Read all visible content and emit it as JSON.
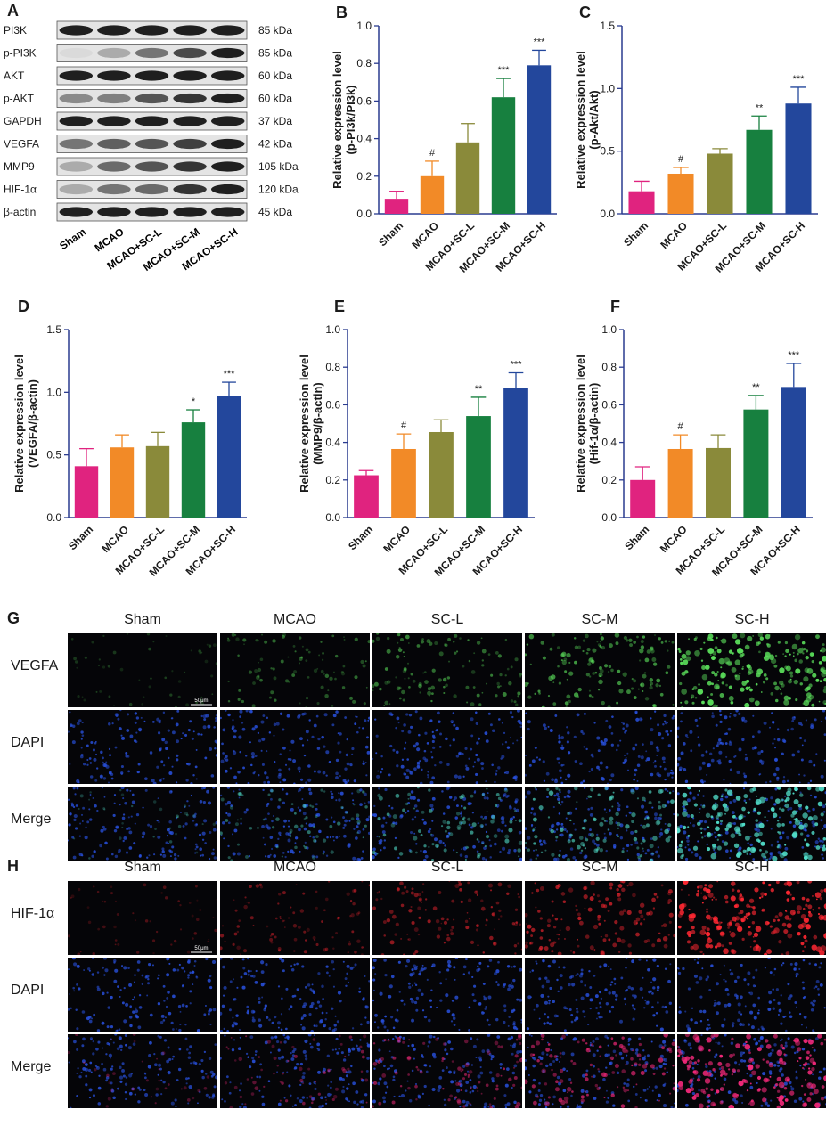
{
  "western_blot": {
    "label": "A",
    "bands": [
      {
        "name": "PI3K",
        "kda": "85 kDa",
        "intens": [
          0.95,
          0.95,
          0.95,
          0.95,
          0.95
        ]
      },
      {
        "name": "p-PI3K",
        "kda": "85 kDa",
        "intens": [
          0.08,
          0.3,
          0.55,
          0.75,
          0.95
        ]
      },
      {
        "name": "AKT",
        "kda": "60 kDa",
        "intens": [
          0.95,
          0.95,
          0.95,
          0.95,
          0.95
        ]
      },
      {
        "name": "p-AKT",
        "kda": "60 kDa",
        "intens": [
          0.45,
          0.5,
          0.7,
          0.85,
          0.95
        ]
      },
      {
        "name": "GAPDH",
        "kda": "37 kDa",
        "intens": [
          0.95,
          0.95,
          0.95,
          0.95,
          0.95
        ]
      },
      {
        "name": "VEGFA",
        "kda": "42 kDa",
        "intens": [
          0.55,
          0.65,
          0.7,
          0.8,
          0.95
        ]
      },
      {
        "name": "MMP9",
        "kda": "105 kDa",
        "intens": [
          0.3,
          0.6,
          0.7,
          0.85,
          0.95
        ]
      },
      {
        "name": "HIF-1α",
        "kda": "120 kDa",
        "intens": [
          0.3,
          0.55,
          0.6,
          0.85,
          0.95
        ]
      },
      {
        "name": "β-actin",
        "kda": "45 kDa",
        "intens": [
          0.95,
          0.95,
          0.95,
          0.95,
          0.95
        ]
      }
    ],
    "lanes": [
      "Sham",
      "MCAO",
      "MCAO+SC-L",
      "MCAO+SC-M",
      "MCAO+SC-H"
    ]
  },
  "colors": {
    "sham": "#e0237f",
    "mcao": "#f28a27",
    "scl": "#8a8a3a",
    "scm": "#17803f",
    "sch": "#23479c",
    "axis": "#2a3b8f"
  },
  "chart_data": [
    {
      "label": "B",
      "type": "bar",
      "categories": [
        "Sham",
        "MCAO",
        "MCAO+SC-L",
        "MCAO+SC-M",
        "MCAO+SC-H"
      ],
      "values": [
        0.08,
        0.2,
        0.38,
        0.62,
        0.79
      ],
      "errors": [
        0.04,
        0.08,
        0.1,
        0.1,
        0.08
      ],
      "sig": [
        "",
        "#",
        "",
        "***",
        "***"
      ],
      "ylabel": "Relative expression level\n(p-PI3k/PI3k)",
      "ylim": [
        0,
        1.0
      ],
      "ticks": [
        "0.0",
        "0.2",
        "0.4",
        "0.6",
        "0.8",
        "1.0"
      ]
    },
    {
      "label": "C",
      "type": "bar",
      "categories": [
        "Sham",
        "MCAO",
        "MCAO+SC-L",
        "MCAO+SC-M",
        "MCAO+SC-H"
      ],
      "values": [
        0.18,
        0.32,
        0.48,
        0.67,
        0.88
      ],
      "errors": [
        0.08,
        0.05,
        0.04,
        0.11,
        0.13
      ],
      "sig": [
        "",
        "#",
        "",
        "**",
        "***"
      ],
      "ylabel": "Relative expression level\n(p-Akt/Akt)",
      "ylim": [
        0,
        1.5
      ],
      "ticks": [
        "0.0",
        "0.5",
        "1.0",
        "1.5"
      ]
    },
    {
      "label": "D",
      "type": "bar",
      "categories": [
        "Sham",
        "MCAO",
        "MCAO+SC-L",
        "MCAO+SC-M",
        "MCAO+SC-H"
      ],
      "values": [
        0.41,
        0.56,
        0.57,
        0.76,
        0.97
      ],
      "errors": [
        0.14,
        0.1,
        0.11,
        0.1,
        0.11
      ],
      "sig": [
        "",
        "",
        "",
        "*",
        "***"
      ],
      "ylabel": "Relative expression level\n(VEGFA/β-actin)",
      "ylim": [
        0,
        1.5
      ],
      "ticks": [
        "0.0",
        "0.5",
        "1.0",
        "1.5"
      ]
    },
    {
      "label": "E",
      "type": "bar",
      "categories": [
        "Sham",
        "MCAO",
        "MCAO+SC-L",
        "MCAO+SC-M",
        "MCAO+SC-H"
      ],
      "values": [
        0.225,
        0.365,
        0.455,
        0.54,
        0.69
      ],
      "errors": [
        0.025,
        0.08,
        0.065,
        0.1,
        0.08
      ],
      "sig": [
        "",
        "#",
        "",
        "**",
        "***"
      ],
      "ylabel": "Relative expression level\n(MMP9/β-actin)",
      "ylim": [
        0,
        1.0
      ],
      "ticks": [
        "0.0",
        "0.2",
        "0.4",
        "0.6",
        "0.8",
        "1.0"
      ]
    },
    {
      "label": "F",
      "type": "bar",
      "categories": [
        "Sham",
        "MCAO",
        "MCAO+SC-L",
        "MCAO+SC-M",
        "MCAO+SC-H"
      ],
      "values": [
        0.2,
        0.365,
        0.37,
        0.575,
        0.695
      ],
      "errors": [
        0.07,
        0.075,
        0.07,
        0.075,
        0.125
      ],
      "sig": [
        "",
        "#",
        "",
        "**",
        "***"
      ],
      "ylabel": "Relative expression level\n(Hif-1α/β-actin)",
      "ylim": [
        0,
        1.0
      ],
      "ticks": [
        "0.0",
        "0.2",
        "0.4",
        "0.6",
        "0.8",
        "1.0"
      ]
    }
  ],
  "micrographs": [
    {
      "label": "G",
      "columns": [
        "Sham",
        "MCAO",
        "SC-L",
        "SC-M",
        "SC-H"
      ],
      "rows": [
        "VEGFA",
        "DAPI",
        "Merge"
      ],
      "scale": "50μm",
      "marker": "green"
    },
    {
      "label": "H",
      "columns": [
        "Sham",
        "MCAO",
        "SC-L",
        "SC-M",
        "SC-H"
      ],
      "rows": [
        "HIF-1α",
        "DAPI",
        "Merge"
      ],
      "scale": "50μm",
      "marker": "red"
    }
  ]
}
